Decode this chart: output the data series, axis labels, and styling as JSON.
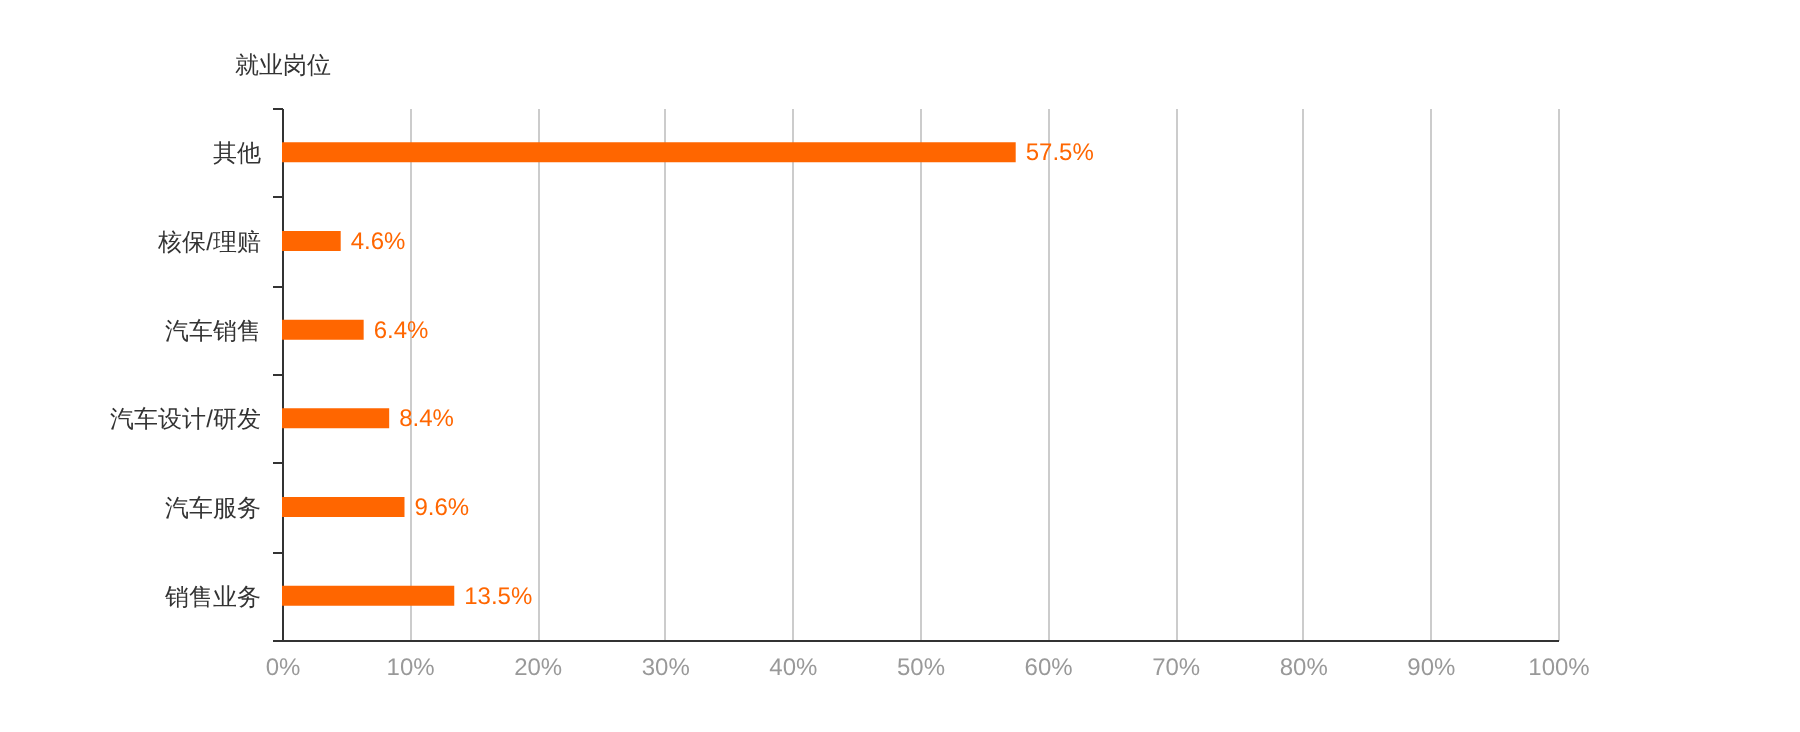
{
  "chart_data": {
    "type": "bar",
    "orientation": "horizontal",
    "ylabel": "就业岗位",
    "categories": [
      "其他",
      "核保/理赔",
      "汽车销售",
      "汽车设计/研发",
      "汽车服务",
      "销售业务"
    ],
    "values": [
      57.5,
      4.6,
      6.4,
      8.4,
      9.6,
      13.5
    ],
    "value_labels": [
      "57.5%",
      "4.6%",
      "6.4%",
      "8.4%",
      "9.6%",
      "13.5%"
    ],
    "color": "#ff6600",
    "xlim": [
      0,
      100
    ],
    "xticks": [
      {
        "value": 0,
        "label": "0%"
      },
      {
        "value": 10,
        "label": "10%"
      },
      {
        "value": 20,
        "label": "20%"
      },
      {
        "value": 30,
        "label": "30%"
      },
      {
        "value": 40,
        "label": "40%"
      },
      {
        "value": 50,
        "label": "50%"
      },
      {
        "value": 60,
        "label": "60%"
      },
      {
        "value": 70,
        "label": "70%"
      },
      {
        "value": 80,
        "label": "80%"
      },
      {
        "value": 90,
        "label": "90%"
      },
      {
        "value": 100,
        "label": "100%"
      }
    ],
    "grid": "x"
  }
}
